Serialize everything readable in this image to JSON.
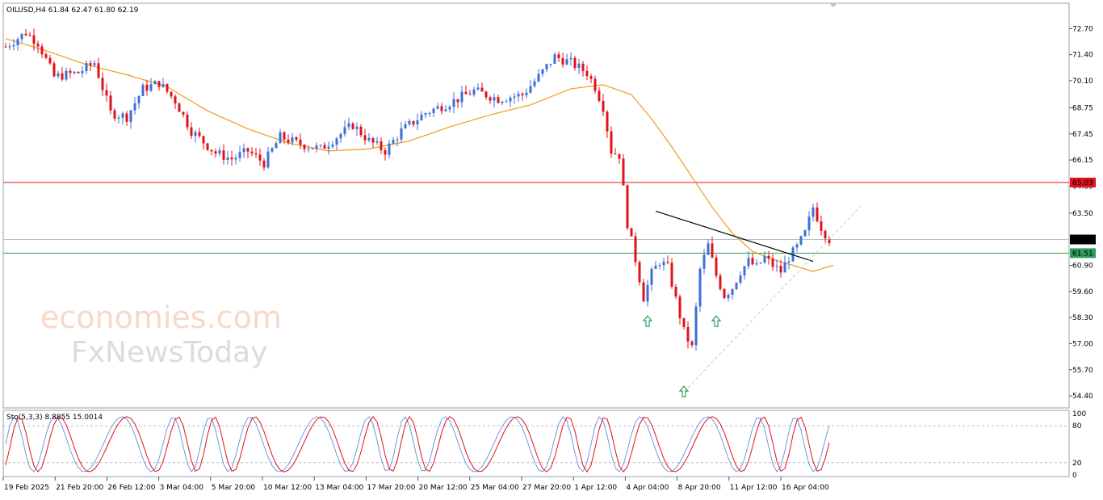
{
  "symbol_info": "OILUSD,H4  61.84 62.47 61.80 62.19",
  "stoch_info": "Sto(5,3,3) 8.8855 15.0014",
  "watermark": {
    "line1": "economies.com",
    "line2": "FxNewsToday"
  },
  "colors": {
    "bull": "#3d6fd6",
    "bear": "#e0121a",
    "ma": "#f29a1d",
    "resistance": "#e0121a",
    "support": "#2e9e5b",
    "current_price": "#b9c0c6",
    "trend_line": "#000000",
    "arrow": "#2e9e5b",
    "stoch_main": "#6b9be0",
    "stoch_signal": "#e0121a"
  },
  "chart_data": {
    "type": "candlestick",
    "title": "",
    "price_axis": [
      "72.70",
      "71.40",
      "70.10",
      "68.75",
      "67.45",
      "66.15",
      "64.85",
      "63.50",
      "62.19",
      "60.90",
      "59.60",
      "58.30",
      "57.00",
      "55.70",
      "54.40"
    ],
    "time_axis": [
      "19 Feb 2025",
      "21 Feb 20:00",
      "26 Feb 12:00",
      "3 Mar 04:00",
      "5 Mar 20:00",
      "10 Mar 12:00",
      "13 Mar 04:00",
      "17 Mar 20:00",
      "20 Mar 12:00",
      "25 Mar 04:00",
      "27 Mar 20:00",
      "1 Apr 12:00",
      "4 Apr 04:00",
      "8 Apr 20:00",
      "11 Apr 12:00",
      "16 Apr 04:00"
    ],
    "ylim": [
      54.0,
      73.8
    ],
    "levels": {
      "resistance": "65.03",
      "current": "62.19",
      "support": "61.51"
    },
    "price_path": [
      [
        0,
        71.8
      ],
      [
        5,
        72.5
      ],
      [
        8,
        72.0
      ],
      [
        12,
        70.3
      ],
      [
        18,
        70.5
      ],
      [
        22,
        71.0
      ],
      [
        26,
        68.5
      ],
      [
        30,
        68.3
      ],
      [
        34,
        69.7
      ],
      [
        38,
        70.0
      ],
      [
        42,
        69.1
      ],
      [
        46,
        67.6
      ],
      [
        52,
        66.5
      ],
      [
        56,
        66.2
      ],
      [
        60,
        66.6
      ],
      [
        64,
        66.0
      ],
      [
        68,
        67.3
      ],
      [
        72,
        67.0
      ],
      [
        78,
        66.7
      ],
      [
        82,
        67.3
      ],
      [
        86,
        67.9
      ],
      [
        90,
        67.1
      ],
      [
        94,
        66.6
      ],
      [
        98,
        67.6
      ],
      [
        104,
        68.5
      ],
      [
        110,
        69.0
      ],
      [
        116,
        69.6
      ],
      [
        122,
        69.2
      ],
      [
        128,
        69.4
      ],
      [
        132,
        70.3
      ],
      [
        136,
        71.3
      ],
      [
        140,
        71.0
      ],
      [
        144,
        70.5
      ],
      [
        146,
        69.8
      ],
      [
        148,
        68.8
      ],
      [
        150,
        66.6
      ],
      [
        152,
        66.4
      ],
      [
        154,
        63.0
      ],
      [
        156,
        61.2
      ],
      [
        158,
        59.3
      ],
      [
        160,
        60.5
      ],
      [
        162,
        61.1
      ],
      [
        164,
        60.8
      ],
      [
        166,
        59.2
      ],
      [
        168,
        57.6
      ],
      [
        170,
        56.8
      ],
      [
        172,
        60.7
      ],
      [
        174,
        61.9
      ],
      [
        176,
        60.4
      ],
      [
        178,
        59.4
      ],
      [
        180,
        59.8
      ],
      [
        182,
        60.6
      ],
      [
        184,
        61.1
      ],
      [
        186,
        60.8
      ],
      [
        188,
        61.3
      ],
      [
        190,
        60.9
      ],
      [
        192,
        60.6
      ],
      [
        194,
        61.3
      ],
      [
        196,
        61.8
      ],
      [
        198,
        62.5
      ],
      [
        200,
        63.8
      ],
      [
        202,
        62.8
      ],
      [
        204,
        62.2
      ]
    ],
    "ma_path": [
      [
        0,
        72.2
      ],
      [
        10,
        71.6
      ],
      [
        20,
        70.9
      ],
      [
        30,
        70.4
      ],
      [
        40,
        69.8
      ],
      [
        50,
        68.6
      ],
      [
        60,
        67.7
      ],
      [
        70,
        67.0
      ],
      [
        80,
        66.6
      ],
      [
        90,
        66.7
      ],
      [
        100,
        67.1
      ],
      [
        110,
        67.8
      ],
      [
        120,
        68.4
      ],
      [
        130,
        68.9
      ],
      [
        140,
        69.7
      ],
      [
        148,
        69.9
      ],
      [
        155,
        69.4
      ],
      [
        160,
        68.2
      ],
      [
        165,
        66.8
      ],
      [
        170,
        65.3
      ],
      [
        175,
        63.8
      ],
      [
        180,
        62.5
      ],
      [
        185,
        61.6
      ],
      [
        190,
        61.2
      ],
      [
        195,
        60.9
      ],
      [
        200,
        60.6
      ],
      [
        205,
        60.9
      ]
    ],
    "trend_lines": [
      {
        "name": "descending",
        "from": [
          161,
          63.6
        ],
        "to": [
          200,
          61.1
        ]
      },
      {
        "name": "ascending",
        "from": [
          168,
          54.6
        ],
        "to": [
          212,
          63.9
        ]
      }
    ],
    "arrows": [
      [
        159,
        58.1
      ],
      [
        168,
        54.6
      ],
      [
        176,
        58.1
      ]
    ],
    "stoch_levels": [
      "100",
      "80",
      "20",
      "0"
    ]
  }
}
